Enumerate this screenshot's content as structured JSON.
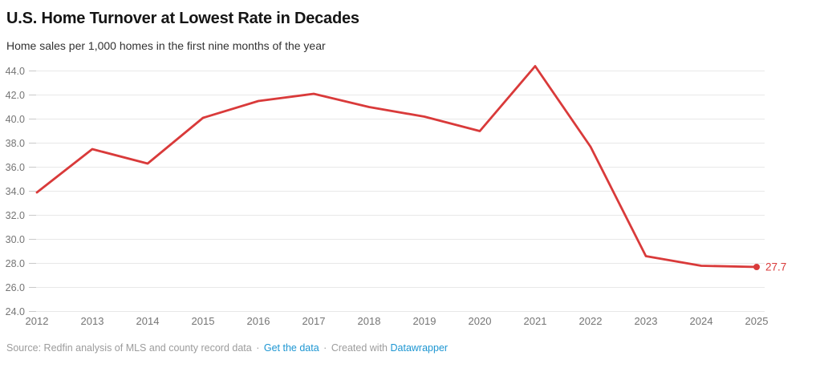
{
  "header": {
    "title": "U.S. Home Turnover at Lowest Rate in Decades",
    "subtitle": "Home sales per 1,000 homes in the first nine months of the year"
  },
  "chart_data": {
    "type": "line",
    "title": "U.S. Home Turnover at Lowest Rate in Decades",
    "subtitle": "Home sales per 1,000 homes in the first nine months of the year",
    "x": [
      2012,
      2013,
      2014,
      2015,
      2016,
      2017,
      2018,
      2019,
      2020,
      2021,
      2022,
      2023,
      2024,
      2025
    ],
    "series": [
      {
        "name": "Home sales per 1,000 homes",
        "values": [
          33.9,
          37.5,
          36.3,
          40.1,
          41.5,
          42.1,
          41.0,
          40.2,
          39.0,
          44.4,
          37.7,
          28.6,
          27.8,
          27.7
        ]
      }
    ],
    "end_label": "27.7",
    "xlabel": "",
    "ylabel": "",
    "ylim": [
      24,
      44.4
    ],
    "y_ticks": [
      44,
      42,
      40,
      38,
      36,
      34,
      32,
      30,
      28,
      26,
      24
    ],
    "y_tick_labels": [
      "44.0",
      "42.0",
      "40.0",
      "38.0",
      "36.0",
      "34.0",
      "32.0",
      "30.0",
      "28.0",
      "26.0",
      "24.0"
    ],
    "grid": "horizontal",
    "legend": "none",
    "colors": {
      "line": "#d93a3a",
      "gridline": "#e8e8e8",
      "tick": "#c9c9c9",
      "axis_label": "#757575"
    }
  },
  "footer": {
    "source_text": "Source: Redfin analysis of MLS and county record data",
    "separator": "·",
    "get_data_label": "Get the data",
    "created_with_text": "Created with",
    "datawrapper_label": "Datawrapper",
    "link_color": "#1d96d2"
  }
}
